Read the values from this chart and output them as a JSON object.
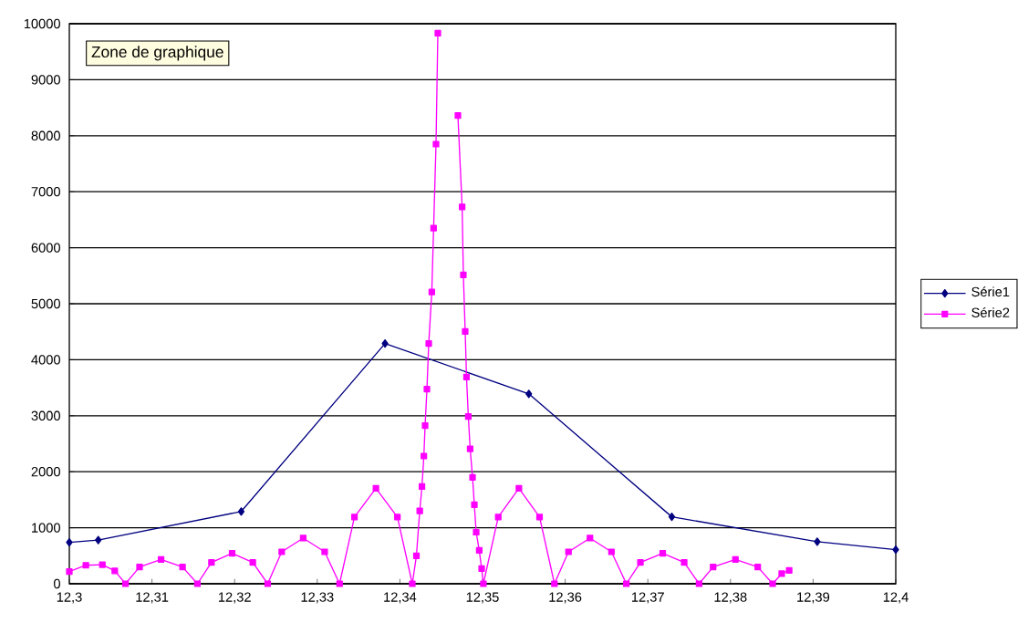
{
  "chart_data": {
    "type": "line",
    "xlim": [
      12.3,
      12.4
    ],
    "xticks": [
      {
        "value": 12.3,
        "label": "12,3"
      },
      {
        "value": 12.31,
        "label": "12,31"
      },
      {
        "value": 12.32,
        "label": "12,32"
      },
      {
        "value": 12.33,
        "label": "12,33"
      },
      {
        "value": 12.34,
        "label": "12,34"
      },
      {
        "value": 12.35,
        "label": "12,35"
      },
      {
        "value": 12.36,
        "label": "12,36"
      },
      {
        "value": 12.37,
        "label": "12,37"
      },
      {
        "value": 12.38,
        "label": "12,38"
      },
      {
        "value": 12.39,
        "label": "12,39"
      },
      {
        "value": 12.4,
        "label": "12,4"
      }
    ],
    "ylim": [
      0,
      10000
    ],
    "yticks": [
      0,
      1000,
      2000,
      3000,
      4000,
      5000,
      6000,
      7000,
      8000,
      9000,
      10000
    ],
    "grid": "y",
    "legend": "right",
    "line_style": "solid",
    "annotations": [
      "Zone de graphique"
    ],
    "series": [
      {
        "name": "Série1",
        "color": "#000080",
        "marker": "diamond",
        "x": [
          12.3,
          12.3035,
          12.3208,
          12.3382,
          12.3556,
          12.3729,
          12.3905,
          12.4
        ],
        "values": [
          740,
          780,
          1290,
          4290,
          3390,
          1195,
          750,
          610
        ]
      },
      {
        "name": "Série2",
        "color": "#ff00ff",
        "marker": "square",
        "x": [
          12.3,
          12.302,
          12.304,
          12.3055,
          12.3068,
          12.3085,
          12.3111,
          12.3137,
          12.3155,
          12.3172,
          12.3197,
          12.3222,
          12.324,
          12.3257,
          12.3283,
          12.3309,
          12.3327,
          12.3345,
          12.3371,
          12.3397,
          12.3415,
          12.342,
          12.3424,
          12.34267,
          12.3429,
          12.34305,
          12.34327,
          12.34349,
          12.34386,
          12.34408,
          12.34437,
          12.34459,
          12.3458,
          12.34702,
          12.34753,
          12.34768,
          12.3479,
          12.34806,
          12.34828,
          12.3485,
          12.34879,
          12.34901,
          12.34923,
          12.3496,
          12.34989,
          12.3501,
          12.3519,
          12.3544,
          12.3569,
          12.3587,
          12.3604,
          12.363,
          12.3656,
          12.3674,
          12.3691,
          12.3718,
          12.3744,
          12.3762,
          12.3779,
          12.3806,
          12.3833,
          12.3851,
          12.3862,
          12.3871
        ],
        "values": [
          218,
          330,
          340,
          230,
          0,
          300,
          435,
          300,
          0,
          380,
          543,
          380,
          0,
          570,
          815,
          570,
          0,
          1190,
          1705,
          1190,
          0,
          500,
          1300,
          1735,
          2280,
          2825,
          3475,
          4290,
          5210,
          6350,
          7850,
          9830,
          null,
          8360,
          6730,
          5515,
          4505,
          3690,
          2985,
          2410,
          1900,
          1410,
          920,
          596,
          270,
          0,
          1190,
          1705,
          1190,
          0,
          570,
          815,
          570,
          0,
          380,
          543,
          380,
          0,
          300,
          435,
          300,
          0,
          180,
          238
        ]
      }
    ]
  }
}
